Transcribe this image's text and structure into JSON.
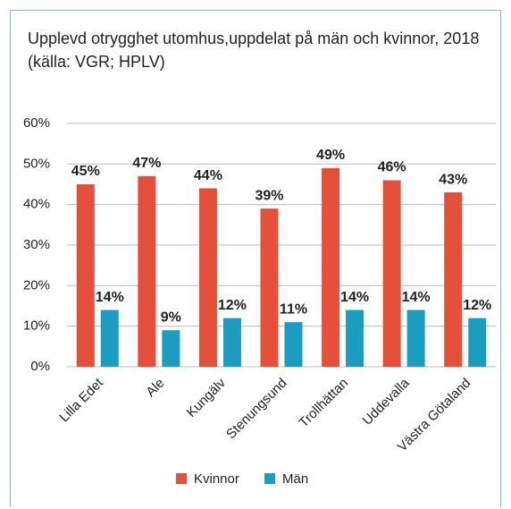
{
  "chart_data": {
    "type": "bar",
    "title": "Upplevd otrygghet utomhus,uppdelat på män och kvinnor, 2018 (källa: VGR; HPLV)",
    "categories": [
      "Lilla Edet",
      "Ale",
      "Kungälv",
      "Stenungsund",
      "Trollhättan",
      "Uddevalla",
      "Västra Götaland"
    ],
    "series": [
      {
        "name": "Kvinnor",
        "color": "#e4503a",
        "values": [
          45,
          47,
          44,
          39,
          49,
          46,
          43
        ],
        "value_labels": [
          "45%",
          "47%",
          "44%",
          "39%",
          "49%",
          "46%",
          "43%"
        ]
      },
      {
        "name": "Män",
        "color": "#1a9dc1",
        "values": [
          14,
          9,
          12,
          11,
          14,
          14,
          12
        ],
        "value_labels": [
          "14%",
          "9%",
          "12%",
          "11%",
          "14%",
          "14%",
          "12%"
        ]
      }
    ],
    "ylim": [
      0,
      60
    ],
    "yticks": [
      {
        "value": 0,
        "label": "0%"
      },
      {
        "value": 10,
        "label": "10%"
      },
      {
        "value": 20,
        "label": "20%"
      },
      {
        "value": 30,
        "label": "30%"
      },
      {
        "value": 40,
        "label": "40%"
      },
      {
        "value": 50,
        "label": "50%"
      },
      {
        "value": 60,
        "label": "60%"
      }
    ],
    "grid": true,
    "legend": "bottom"
  }
}
